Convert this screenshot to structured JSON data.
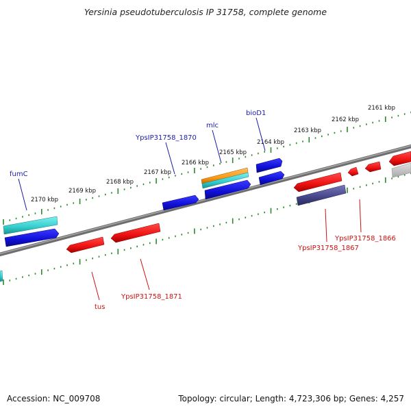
{
  "title": "Yersinia pseudotuberculosis IP 31758, complete genome",
  "footer": {
    "accession": "Accession: NC_009708",
    "summary": "Topology: circular; Length: 4,723,306 bp; Genes: 4,257"
  },
  "scale": {
    "unit": "kbp",
    "tick_labels": [
      "2161 kbp",
      "2162 kbp",
      "2163 kbp",
      "2164 kbp",
      "2165 kbp",
      "2166 kbp",
      "2167 kbp",
      "2168 kbp",
      "2169 kbp",
      "2170 kbp"
    ]
  },
  "genes": {
    "forward_labels": [
      "fumC",
      "YpsIP31758_1870",
      "mlc",
      "bioD1"
    ],
    "reverse_labels": [
      "tus",
      "YpsIP31758_1871",
      "YpsIP31758_1867",
      "YpsIP31758_1866"
    ]
  },
  "colors": {
    "backbone": "#888888",
    "tick": "#2a8a2a",
    "forward_gene": "#1111dd",
    "reverse_gene": "#ee1111",
    "rna": "#33cccc",
    "other": "#ff9911",
    "pseudo": "#444488",
    "label_forward": "#1a1aaa",
    "label_reverse": "#cc1111"
  }
}
